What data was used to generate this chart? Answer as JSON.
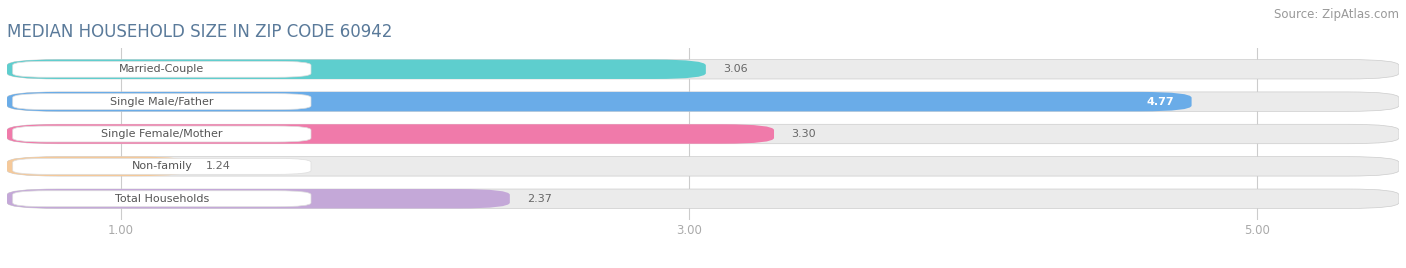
{
  "title": "MEDIAN HOUSEHOLD SIZE IN ZIP CODE 60942",
  "source": "Source: ZipAtlas.com",
  "categories": [
    "Married-Couple",
    "Single Male/Father",
    "Single Female/Mother",
    "Non-family",
    "Total Households"
  ],
  "values": [
    3.06,
    4.77,
    3.3,
    1.24,
    2.37
  ],
  "bar_colors": [
    "#5ecece",
    "#6aace8",
    "#f07aaa",
    "#f5c99a",
    "#c4a8d8"
  ],
  "background_color": "#ffffff",
  "bar_bg_color": "#ebebeb",
  "title_color": "#5a7a9a",
  "source_color": "#999999",
  "label_bg_color": "#ffffff",
  "value_color_inside": "#ffffff",
  "value_color_outside": "#666666",
  "label_text_color": "#555555",
  "tick_color": "#aaaaaa",
  "grid_color": "#cccccc",
  "xlim_left": 0.6,
  "xlim_right": 5.5,
  "xstart": 1.0,
  "xticks": [
    1.0,
    3.0,
    5.0
  ],
  "xtick_labels": [
    "1.00",
    "3.00",
    "5.00"
  ],
  "title_fontsize": 12,
  "source_fontsize": 8.5,
  "label_fontsize": 8,
  "value_fontsize": 8
}
